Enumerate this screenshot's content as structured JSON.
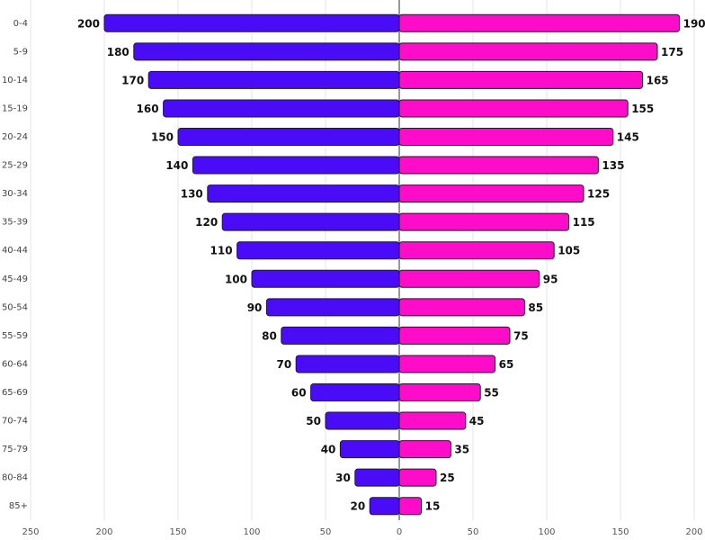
{
  "chart_data": {
    "type": "pyramid",
    "categories": [
      "0-4",
      "5-9",
      "10-14",
      "15-19",
      "20-24",
      "25-29",
      "30-34",
      "35-39",
      "40-44",
      "45-49",
      "50-54",
      "55-59",
      "60-64",
      "65-69",
      "70-74",
      "75-79",
      "80-84",
      "85+"
    ],
    "series": [
      {
        "color": "#4a0cf6",
        "side": "left",
        "values": [
          200,
          180,
          170,
          160,
          150,
          140,
          130,
          120,
          110,
          100,
          90,
          80,
          70,
          60,
          50,
          40,
          30,
          20
        ]
      },
      {
        "color": "#ff0ccb",
        "side": "right",
        "values": [
          190,
          175,
          165,
          155,
          145,
          135,
          125,
          115,
          105,
          95,
          85,
          75,
          65,
          55,
          45,
          35,
          25,
          15
        ]
      }
    ],
    "xlim": [
      -250,
      200
    ],
    "xticks": [
      {
        "value": -250,
        "label": "250"
      },
      {
        "value": -200,
        "label": "200"
      },
      {
        "value": -150,
        "label": "150"
      },
      {
        "value": -100,
        "label": "100"
      },
      {
        "value": -50,
        "label": "50"
      },
      0,
      50,
      100,
      150,
      200
    ],
    "grid": true
  }
}
